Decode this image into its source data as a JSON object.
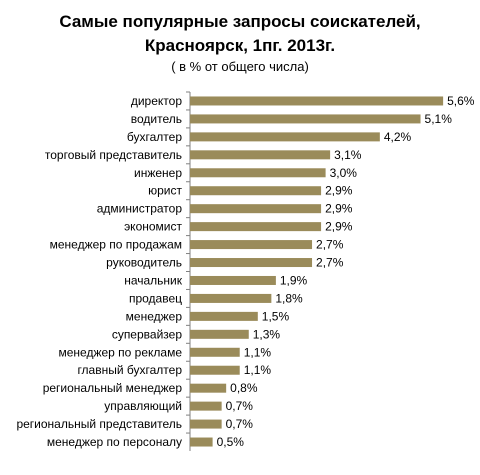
{
  "chart_data": {
    "type": "bar",
    "orientation": "horizontal",
    "title_lines": [
      "Самые популярные запросы соискателей,",
      "Красноярск, 1пг. 2013г."
    ],
    "subtitle": "( в % от общего числа)",
    "categories": [
      "директор",
      "водитель",
      "бухгалтер",
      "торговый представитель",
      "инженер",
      "юрист",
      "администратор",
      "экономист",
      "менеджер по продажам",
      "руководитель",
      "начальник",
      "продавец",
      "менеджер",
      "супервайзер",
      "менеджер по рекламе",
      "главный бухгалтер",
      "региональный менеджер",
      "управляющий",
      "региональный представитель",
      "менеджер по персоналу"
    ],
    "values": [
      5.6,
      5.1,
      4.2,
      3.1,
      3.0,
      2.9,
      2.9,
      2.9,
      2.7,
      2.7,
      1.9,
      1.8,
      1.5,
      1.3,
      1.1,
      1.1,
      0.8,
      0.7,
      0.7,
      0.5
    ],
    "value_labels": [
      "5,6%",
      "5,1%",
      "4,2%",
      "3,1%",
      "3,0%",
      "2,9%",
      "2,9%",
      "2,9%",
      "2,7%",
      "2,7%",
      "1,9%",
      "1,8%",
      "1,5%",
      "1,3%",
      "1,1%",
      "1,1%",
      "0,8%",
      "0,7%",
      "0,7%",
      "0,5%"
    ],
    "bar_color": "#9a8b5a",
    "grid": false,
    "legend": "none"
  }
}
